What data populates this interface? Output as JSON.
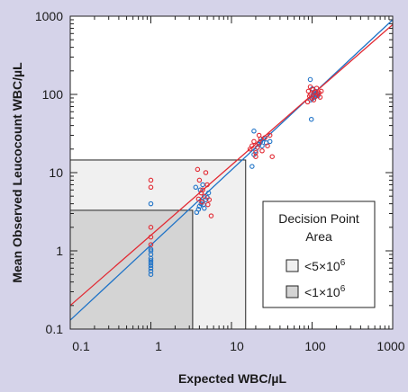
{
  "colors": {
    "background": "#d5d3e9",
    "plot_area": "#ffffff",
    "region_5e6": "#f0f0f0",
    "region_1e6": "#d4d4d4",
    "series_blue": "#1f73c7",
    "series_red": "#e22a33",
    "axis": "#222222"
  },
  "chart_data": {
    "type": "scatter",
    "xscale": "log",
    "yscale": "log",
    "xlim": [
      0.1,
      1000
    ],
    "ylim": [
      0.1,
      1000
    ],
    "xlabel": "Expected WBC/µL",
    "ylabel": "Mean Observed Leucocount WBC/µL",
    "x_ticks": [
      "0.1",
      "1",
      "10",
      "100",
      "1000"
    ],
    "y_ticks": [
      "0.1",
      "1",
      "10",
      "100",
      "1000"
    ],
    "legend": {
      "title_line1": "Decision Point",
      "title_line2": "Area",
      "placement": "lower-right",
      "entries": [
        {
          "label_main": "<5×10",
          "label_exp": "6",
          "region": "region_5e6"
        },
        {
          "label_main": "<1×10",
          "label_exp": "6",
          "region": "region_1e6"
        }
      ]
    },
    "regions": [
      {
        "name": "<5×10^6",
        "x_max": 15,
        "y_max": 14.5,
        "color_key": "region_5e6"
      },
      {
        "name": "<1×10^6",
        "x_max": 3.3,
        "y_max": 3.3,
        "color_key": "region_1e6"
      }
    ],
    "fit_lines": [
      {
        "color_key": "series_blue",
        "x": [
          0.1,
          1000
        ],
        "y": [
          0.13,
          900
        ]
      },
      {
        "color_key": "series_red",
        "x": [
          0.1,
          1000
        ],
        "y": [
          0.2,
          780
        ]
      }
    ],
    "series": [
      {
        "color_key": "series_blue",
        "points": [
          [
            1,
            0.5
          ],
          [
            1,
            0.55
          ],
          [
            1,
            0.6
          ],
          [
            1,
            0.65
          ],
          [
            1,
            0.7
          ],
          [
            1,
            0.75
          ],
          [
            1,
            0.8
          ],
          [
            1,
            0.9
          ],
          [
            1,
            1.0
          ],
          [
            1,
            1.05
          ],
          [
            1,
            4.0
          ],
          [
            3.7,
            3.1
          ],
          [
            3.9,
            3.4
          ],
          [
            4.0,
            3.7
          ],
          [
            4.2,
            4.0
          ],
          [
            4.3,
            4.3
          ],
          [
            4.5,
            3.9
          ],
          [
            4.6,
            3.5
          ],
          [
            4.8,
            4.5
          ],
          [
            5.0,
            4.8
          ],
          [
            3.6,
            6.5
          ],
          [
            4.1,
            6.0
          ],
          [
            5.2,
            5.5
          ],
          [
            4.4,
            7.0
          ],
          [
            18,
            12
          ],
          [
            19,
            17
          ],
          [
            20,
            19
          ],
          [
            21,
            21
          ],
          [
            22,
            23
          ],
          [
            23,
            25
          ],
          [
            24,
            22
          ],
          [
            25,
            27
          ],
          [
            19,
            34
          ],
          [
            27,
            24
          ],
          [
            30,
            25
          ],
          [
            95,
            155
          ],
          [
            98,
            48
          ],
          [
            100,
            88
          ],
          [
            102,
            95
          ],
          [
            104,
            100
          ],
          [
            106,
            105
          ],
          [
            108,
            92
          ],
          [
            110,
            110
          ],
          [
            112,
            98
          ],
          [
            115,
            102
          ],
          [
            118,
            96
          ],
          [
            96,
            85
          ],
          [
            101,
            118
          ]
        ]
      },
      {
        "color_key": "series_red",
        "points": [
          [
            1,
            8.0
          ],
          [
            1,
            6.5
          ],
          [
            1,
            2.0
          ],
          [
            1,
            1.5
          ],
          [
            1,
            1.2
          ],
          [
            3.8,
            11.0
          ],
          [
            4.0,
            8.0
          ],
          [
            4.2,
            5.5
          ],
          [
            4.4,
            6.0
          ],
          [
            4.6,
            5.0
          ],
          [
            4.8,
            10.0
          ],
          [
            5.0,
            7.0
          ],
          [
            5.3,
            4.5
          ],
          [
            5.6,
            2.8
          ],
          [
            3.9,
            4.6
          ],
          [
            4.3,
            4.2
          ],
          [
            5.1,
            3.9
          ],
          [
            17,
            20
          ],
          [
            18,
            22
          ],
          [
            19,
            25
          ],
          [
            20,
            18
          ],
          [
            21,
            21
          ],
          [
            22,
            24
          ],
          [
            23,
            27
          ],
          [
            24,
            19
          ],
          [
            26,
            28
          ],
          [
            28,
            22
          ],
          [
            30,
            30
          ],
          [
            32,
            16
          ],
          [
            20,
            16
          ],
          [
            22,
            30
          ],
          [
            90,
            110
          ],
          [
            93,
            95
          ],
          [
            96,
            100
          ],
          [
            99,
            90
          ],
          [
            102,
            115
          ],
          [
            105,
            85
          ],
          [
            108,
            108
          ],
          [
            111,
            95
          ],
          [
            114,
            120
          ],
          [
            118,
            100
          ],
          [
            122,
            105
          ],
          [
            126,
            92
          ],
          [
            88,
            80
          ],
          [
            95,
            125
          ],
          [
            130,
            110
          ]
        ]
      }
    ]
  }
}
